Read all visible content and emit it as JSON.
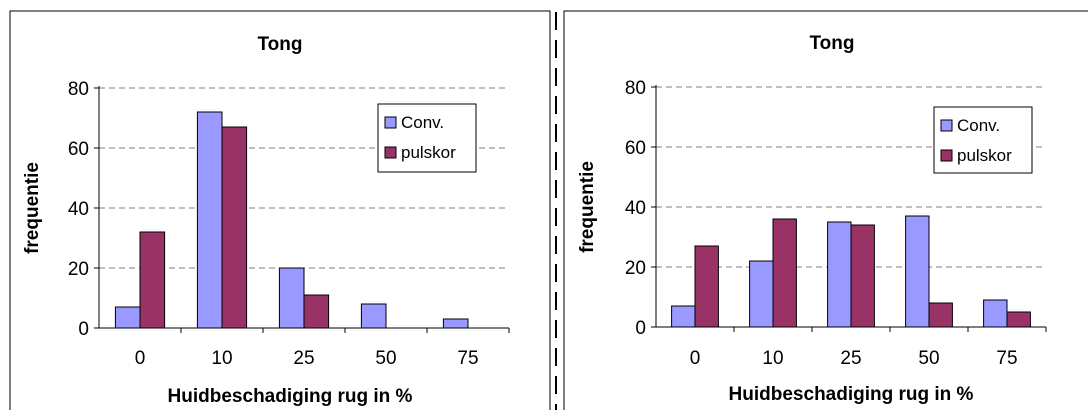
{
  "colors": {
    "conv": "#9999ff",
    "pulskor": "#993366",
    "border": "#000000",
    "grid": "#808080"
  },
  "chart_data": [
    {
      "type": "bar",
      "title": "Tong",
      "xlabel": "Huidbeschadiging rug in %",
      "ylabel": "frequentie",
      "categories": [
        "0",
        "10",
        "25",
        "50",
        "75"
      ],
      "ylim": [
        0,
        80
      ],
      "yticks": [
        "0",
        "20",
        "40",
        "60",
        "80"
      ],
      "grid": true,
      "legend_position": "top-right",
      "series": [
        {
          "name": "Conv.",
          "values": [
            7,
            72,
            20,
            8,
            3
          ]
        },
        {
          "name": "pulskor",
          "values": [
            32,
            67,
            11,
            0,
            0
          ]
        }
      ]
    },
    {
      "type": "bar",
      "title": "Tong",
      "xlabel": "Huidbeschadiging rug in %",
      "ylabel": "frequentie",
      "categories": [
        "0",
        "10",
        "25",
        "50",
        "75"
      ],
      "ylim": [
        0,
        80
      ],
      "yticks": [
        "0",
        "20",
        "40",
        "60",
        "80"
      ],
      "grid": true,
      "legend_position": "top-right",
      "series": [
        {
          "name": "Conv.",
          "values": [
            7,
            22,
            35,
            37,
            9
          ]
        },
        {
          "name": "pulskor",
          "values": [
            27,
            36,
            34,
            8,
            5
          ]
        }
      ]
    }
  ]
}
